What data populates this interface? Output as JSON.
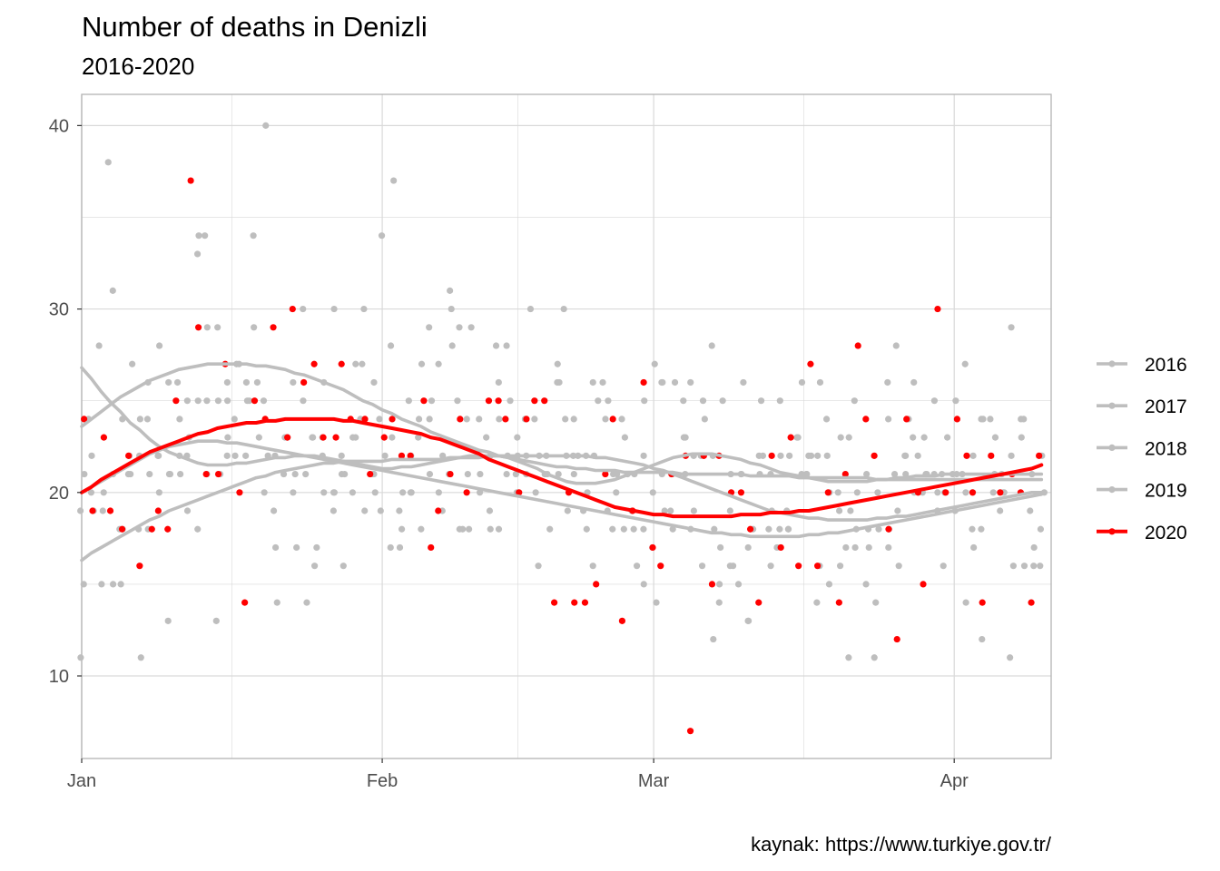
{
  "colors": {
    "highlight": "#ff0000",
    "others": "#bebebe",
    "grid": "#d9d9d9",
    "panel_border": "#b3b3b3"
  },
  "chart_data": {
    "type": "scatter",
    "title": "Number of deaths in Denizli",
    "subtitle": "2016-2020",
    "caption": "kaynak: https://www.turkiye.gov.tr/",
    "xlabel": "",
    "ylabel": "",
    "x_unit": "day of year",
    "xlim": [
      1,
      101
    ],
    "ylim": [
      5.5,
      41.7
    ],
    "x_ticks": [
      {
        "label": "Jan",
        "day": 1
      },
      {
        "label": "Feb",
        "day": 32
      },
      {
        "label": "Mar",
        "day": 60
      },
      {
        "label": "Apr",
        "day": 91
      }
    ],
    "y_ticks": [
      10,
      20,
      30,
      40
    ],
    "grid": true,
    "legend_position": "right",
    "smooth": true,
    "series": [
      {
        "name": "2016",
        "color": "#bebebe",
        "values": [
          15,
          19,
          28,
          38,
          18,
          22,
          11,
          21,
          28,
          13,
          21,
          19,
          33,
          21,
          13,
          22,
          27,
          25,
          34,
          22,
          14,
          23,
          20,
          25,
          16,
          22,
          20,
          21,
          23,
          27,
          20,
          19,
          28,
          17,
          20,
          23,
          24,
          19,
          28,
          18,
          29,
          21,
          19,
          18,
          25,
          21,
          24,
          16,
          22,
          26,
          30,
          24,
          18,
          26,
          25,
          21,
          24,
          18,
          25,
          27,
          19,
          26,
          23,
          19,
          25,
          28,
          15,
          19,
          21,
          13,
          22,
          18,
          25,
          19,
          21,
          21,
          16,
          24,
          20,
          17,
          25,
          18,
          20,
          24,
          21,
          24,
          26,
          21,
          19,
          23,
          25,
          21,
          17,
          18,
          24,
          19,
          22,
          24,
          16,
          22
        ],
        "smooth": [
          26.8,
          26.2,
          25.5,
          24.9,
          24.4,
          23.8,
          23.4,
          22.9,
          22.5,
          22.2,
          22.0,
          21.8,
          21.6,
          21.5,
          21.5,
          21.5,
          21.6,
          21.6,
          21.7,
          21.8,
          21.9,
          21.9,
          22.0,
          22.0,
          22.0,
          21.9,
          21.8,
          21.7,
          21.6,
          21.5,
          21.4,
          21.3,
          21.3,
          21.4,
          21.4,
          21.5,
          21.6,
          21.7,
          21.8,
          21.9,
          22.0,
          22.0,
          22.0,
          22.0,
          21.9,
          21.7,
          21.5,
          21.3,
          21.0,
          20.8,
          20.6,
          20.5,
          20.5,
          20.5,
          20.6,
          20.7,
          20.9,
          21.1,
          21.3,
          21.5,
          21.7,
          21.9,
          22.0,
          22.1,
          22.1,
          22.1,
          22.0,
          21.9,
          21.8,
          21.6,
          21.5,
          21.3,
          21.1,
          21.0,
          20.9,
          20.8,
          20.7,
          20.6,
          20.6,
          20.6,
          20.6,
          20.6,
          20.7,
          20.7,
          20.8,
          20.8,
          20.9,
          20.9,
          20.9,
          21.0,
          21.0,
          21.0,
          21.0,
          21.0,
          21.0,
          21.0,
          21.0,
          21.0,
          21.0,
          21.0
        ]
      },
      {
        "name": "2017",
        "color": "#bebebe",
        "values": [
          11,
          22,
          20,
          31,
          15,
          27,
          24,
          26,
          22,
          21,
          24,
          25,
          34,
          29,
          21,
          26,
          24,
          25,
          26,
          40,
          22,
          23,
          17,
          14,
          23,
          23,
          20,
          16,
          27,
          24,
          26,
          34,
          37,
          19,
          25,
          24,
          21,
          27,
          31,
          25,
          21,
          20,
          22,
          28,
          28,
          20,
          30,
          24,
          18,
          21,
          19,
          22,
          22,
          16,
          24,
          21,
          23,
          19,
          22,
          17,
          26,
          18,
          25,
          26,
          24,
          12,
          25,
          21,
          26,
          18,
          22,
          19,
          18,
          22,
          23,
          21,
          26,
          20,
          23,
          19,
          17,
          17,
          18,
          26,
          28,
          22,
          20,
          23,
          20,
          21,
          19,
          27,
          22,
          24,
          23,
          20,
          11,
          23,
          17,
          18
        ],
        "smooth": [
          20.0,
          20.3,
          20.6,
          20.9,
          21.2,
          21.5,
          21.8,
          22.1,
          22.3,
          22.5,
          22.6,
          22.7,
          22.8,
          22.8,
          22.8,
          22.7,
          22.7,
          22.6,
          22.5,
          22.4,
          22.3,
          22.2,
          22.1,
          22.0,
          21.9,
          21.8,
          21.7,
          21.6,
          21.5,
          21.4,
          21.3,
          21.2,
          21.1,
          21.0,
          20.9,
          20.8,
          20.7,
          20.6,
          20.5,
          20.4,
          20.3,
          20.2,
          20.1,
          20.0,
          19.9,
          19.8,
          19.7,
          19.6,
          19.5,
          19.4,
          19.3,
          19.2,
          19.1,
          19.0,
          18.9,
          18.8,
          18.7,
          18.6,
          18.5,
          18.4,
          18.3,
          18.2,
          18.1,
          18.0,
          17.9,
          17.8,
          17.8,
          17.7,
          17.7,
          17.6,
          17.6,
          17.6,
          17.6,
          17.6,
          17.6,
          17.7,
          17.7,
          17.8,
          17.8,
          17.9,
          18.0,
          18.1,
          18.2,
          18.3,
          18.4,
          18.5,
          18.6,
          18.7,
          18.8,
          18.9,
          19.0,
          19.1,
          19.2,
          19.3,
          19.4,
          19.5,
          19.6,
          19.7,
          19.8,
          19.9
        ]
      },
      {
        "name": "2018",
        "color": "#bebebe",
        "values": [
          19,
          24,
          19,
          15,
          18,
          21,
          18,
          24,
          22,
          21,
          26,
          22,
          18,
          25,
          29,
          23,
          27,
          26,
          29,
          25,
          17,
          23,
          26,
          21,
          23,
          26,
          19,
          22,
          20,
          30,
          21,
          24,
          17,
          18,
          22,
          27,
          25,
          20,
          30,
          29,
          18,
          24,
          18,
          26,
          21,
          23,
          22,
          20,
          21,
          27,
          22,
          22,
          20,
          25,
          26,
          18,
          21,
          21,
          15,
          20,
          26,
          21,
          23,
          18,
          22,
          22,
          14,
          16,
          15,
          13,
          25,
          21,
          22,
          18,
          26,
          22,
          14,
          22,
          19,
          23,
          18,
          15,
          11,
          17,
          19,
          21,
          23,
          21,
          25,
          20,
          21,
          14,
          18,
          12,
          20,
          21,
          29,
          16,
          19,
          20
        ],
        "smooth": [
          23.6,
          24.0,
          24.4,
          24.8,
          25.2,
          25.5,
          25.8,
          26.1,
          26.3,
          26.5,
          26.7,
          26.8,
          26.9,
          27.0,
          27.0,
          27.0,
          27.0,
          27.0,
          26.9,
          26.9,
          26.8,
          26.7,
          26.5,
          26.4,
          26.2,
          26.0,
          25.8,
          25.6,
          25.3,
          25.0,
          24.8,
          24.5,
          24.3,
          24.0,
          23.8,
          23.6,
          23.3,
          23.1,
          22.9,
          22.7,
          22.5,
          22.3,
          22.2,
          22.0,
          21.9,
          21.8,
          21.7,
          21.6,
          21.5,
          21.4,
          21.4,
          21.3,
          21.3,
          21.2,
          21.2,
          21.2,
          21.1,
          21.1,
          21.1,
          21.1,
          21.1,
          21.1,
          21.0,
          21.0,
          21.0,
          21.0,
          21.0,
          21.0,
          21.0,
          20.9,
          20.9,
          20.9,
          20.9,
          20.9,
          20.8,
          20.8,
          20.8,
          20.8,
          20.8,
          20.8,
          20.8,
          20.8,
          20.7,
          20.7,
          20.7,
          20.7,
          20.7,
          20.7,
          20.7,
          20.7,
          20.7,
          20.7,
          20.7,
          20.7,
          20.7,
          20.7,
          20.7,
          20.7,
          20.7,
          20.7
        ]
      },
      {
        "name": "2019",
        "color": "#bebebe",
        "values": [
          21,
          20,
          15,
          21,
          24,
          21,
          22,
          18,
          20,
          26,
          22,
          23,
          25,
          34,
          25,
          25,
          22,
          22,
          23,
          20,
          19,
          21,
          21,
          30,
          17,
          20,
          30,
          21,
          23,
          19,
          21,
          22,
          23,
          20,
          20,
          18,
          29,
          22,
          21,
          18,
          24,
          22,
          23,
          24,
          22,
          22,
          21,
          22,
          21,
          26,
          24,
          21,
          19,
          22,
          19,
          20,
          18,
          16,
          18,
          14,
          21,
          19,
          21,
          22,
          16,
          18,
          17,
          16,
          21,
          17,
          21,
          16,
          17,
          18,
          23,
          22,
          22,
          15,
          16,
          11,
          20,
          21,
          14,
          18,
          16,
          22,
          22,
          20,
          21,
          16,
          21,
          20,
          20,
          24,
          21,
          20,
          16,
          24,
          21,
          16
        ],
        "smooth": [
          16.3,
          16.7,
          17.0,
          17.3,
          17.6,
          17.9,
          18.2,
          18.5,
          18.7,
          19.0,
          19.2,
          19.4,
          19.6,
          19.8,
          20.0,
          20.2,
          20.4,
          20.6,
          20.8,
          20.9,
          21.1,
          21.2,
          21.3,
          21.4,
          21.5,
          21.6,
          21.6,
          21.7,
          21.7,
          21.7,
          21.7,
          21.7,
          21.8,
          21.8,
          21.8,
          21.8,
          21.8,
          21.8,
          21.9,
          21.9,
          21.9,
          21.9,
          22.0,
          22.0,
          22.0,
          22.0,
          22.0,
          22.0,
          22.0,
          22.0,
          22.0,
          22.0,
          22.0,
          21.9,
          21.9,
          21.8,
          21.7,
          21.6,
          21.5,
          21.3,
          21.2,
          21.0,
          20.8,
          20.6,
          20.4,
          20.2,
          20.0,
          19.8,
          19.6,
          19.4,
          19.2,
          19.0,
          18.9,
          18.8,
          18.7,
          18.6,
          18.6,
          18.5,
          18.5,
          18.5,
          18.5,
          18.5,
          18.6,
          18.6,
          18.7,
          18.7,
          18.8,
          18.9,
          19.0,
          19.1,
          19.2,
          19.3,
          19.4,
          19.5,
          19.6,
          19.7,
          19.8,
          19.9,
          20.0,
          20.0
        ]
      },
      {
        "name": "2020",
        "color": "#ff0000",
        "values": [
          24,
          19,
          23,
          19,
          18,
          22,
          16,
          18,
          19,
          18,
          25,
          37,
          29,
          21,
          21,
          27,
          20,
          14,
          25,
          24,
          29,
          23,
          30,
          26,
          27,
          23,
          23,
          27,
          24,
          24,
          21,
          23,
          24,
          22,
          22,
          25,
          17,
          19,
          21,
          24,
          20,
          22,
          25,
          25,
          24,
          20,
          24,
          25,
          25,
          14,
          20,
          14,
          14,
          15,
          21,
          24,
          13,
          19,
          26,
          17,
          16,
          21,
          22,
          7,
          22,
          15,
          22,
          20,
          20,
          18,
          14,
          22,
          17,
          23,
          16,
          27,
          16,
          20,
          14,
          21,
          28,
          24,
          22,
          18,
          12,
          24,
          20,
          15,
          30,
          20,
          24,
          22,
          20,
          14,
          22,
          20,
          21,
          20,
          14,
          22
        ],
        "smooth": [
          20.0,
          20.3,
          20.7,
          21.0,
          21.3,
          21.6,
          21.9,
          22.2,
          22.4,
          22.6,
          22.8,
          23.0,
          23.2,
          23.3,
          23.5,
          23.6,
          23.7,
          23.8,
          23.8,
          23.9,
          23.9,
          24.0,
          24.0,
          24.0,
          24.0,
          24.0,
          24.0,
          23.9,
          23.9,
          23.8,
          23.7,
          23.6,
          23.5,
          23.4,
          23.3,
          23.2,
          23.0,
          22.9,
          22.7,
          22.5,
          22.3,
          22.1,
          21.8,
          21.6,
          21.4,
          21.2,
          21.0,
          20.8,
          20.6,
          20.4,
          20.2,
          20.0,
          19.8,
          19.6,
          19.4,
          19.2,
          19.1,
          19.0,
          18.9,
          18.8,
          18.8,
          18.7,
          18.7,
          18.7,
          18.7,
          18.7,
          18.7,
          18.7,
          18.8,
          18.8,
          18.8,
          18.9,
          18.9,
          18.9,
          19.0,
          19.0,
          19.1,
          19.2,
          19.3,
          19.4,
          19.5,
          19.6,
          19.7,
          19.8,
          19.9,
          20.0,
          20.1,
          20.2,
          20.3,
          20.4,
          20.5,
          20.6,
          20.7,
          20.8,
          20.9,
          21.0,
          21.1,
          21.2,
          21.3,
          21.5
        ]
      }
    ]
  }
}
